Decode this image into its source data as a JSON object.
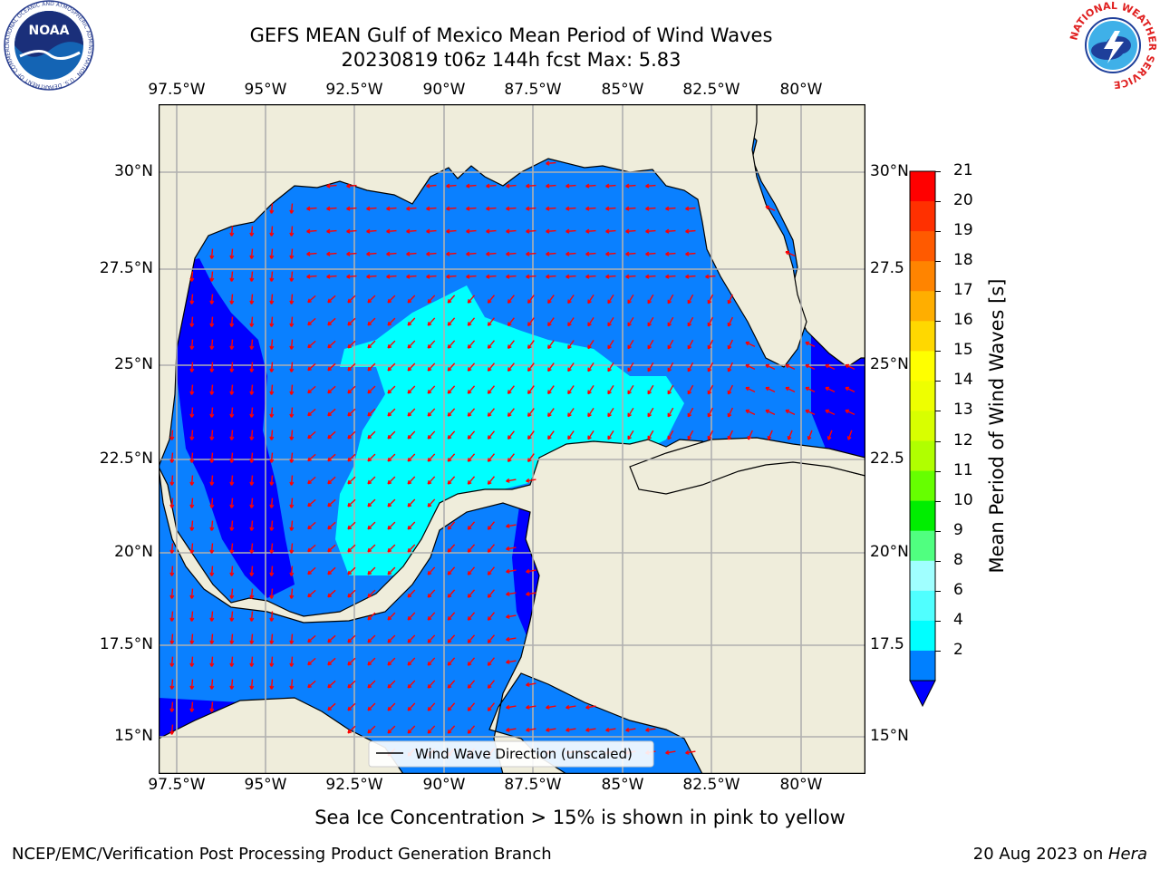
{
  "title": {
    "line1": "GEFS MEAN Gulf of Mexico Mean Period of Wind Waves",
    "line2": "20230819 t06z 144h fcst   Max: 5.83"
  },
  "map": {
    "lon_ticks": [
      "97.5°W",
      "95°W",
      "92.5°W",
      "90°W",
      "87.5°W",
      "85°W",
      "82.5°W",
      "80°W"
    ],
    "lat_ticks": [
      "30°N",
      "27.5°N",
      "25°N",
      "22.5°N",
      "20°N",
      "17.5°N",
      "15°N"
    ],
    "lat_ticks_right": [
      "30°N",
      "27.5",
      "25°N",
      "22.5",
      "20°N",
      "17.5",
      "15°N"
    ],
    "legend_label": "Wind Wave Direction (unscaled)",
    "colors": {
      "land": "#efeddb",
      "band_2_4": "#0a80ff",
      "band_lt2": "#0000ff",
      "band_4_6": "#00ffff",
      "arrow": "#ff0000",
      "grid": "#b0b0b0"
    }
  },
  "colorbar": {
    "label": "Mean Period of Wind Waves [s]",
    "ticks": [
      "21",
      "20",
      "19",
      "18",
      "17",
      "16",
      "15",
      "14",
      "13",
      "12",
      "11",
      "10",
      "9",
      "8",
      "6",
      "4",
      "2"
    ],
    "colors": [
      "#ff0000",
      "#ff3000",
      "#ff5a00",
      "#ff8400",
      "#ffae00",
      "#ffd800",
      "#ffff00",
      "#eeff00",
      "#d8ff00",
      "#b0ff00",
      "#66ff00",
      "#00ee00",
      "#50ff80",
      "#a0ffff",
      "#50ffff",
      "#00ffff",
      "#0080ff",
      "#0000ff"
    ]
  },
  "subtitle": "Sea Ice Concentration > 15% is shown in pink to yellow",
  "footer": {
    "left": "NCEP/EMC/Verification Post Processing Product Generation Branch",
    "right_date": "20 Aug 2023 on ",
    "right_host": "Hera"
  },
  "logos": {
    "left_text": "NOAA",
    "left_ring": "NATIONAL OCEANIC AND ATMOSPHERIC ADMINISTRATION · U.S. DEPARTMENT OF COMMERCE",
    "right_ring": "NATIONAL WEATHER SERVICE"
  }
}
